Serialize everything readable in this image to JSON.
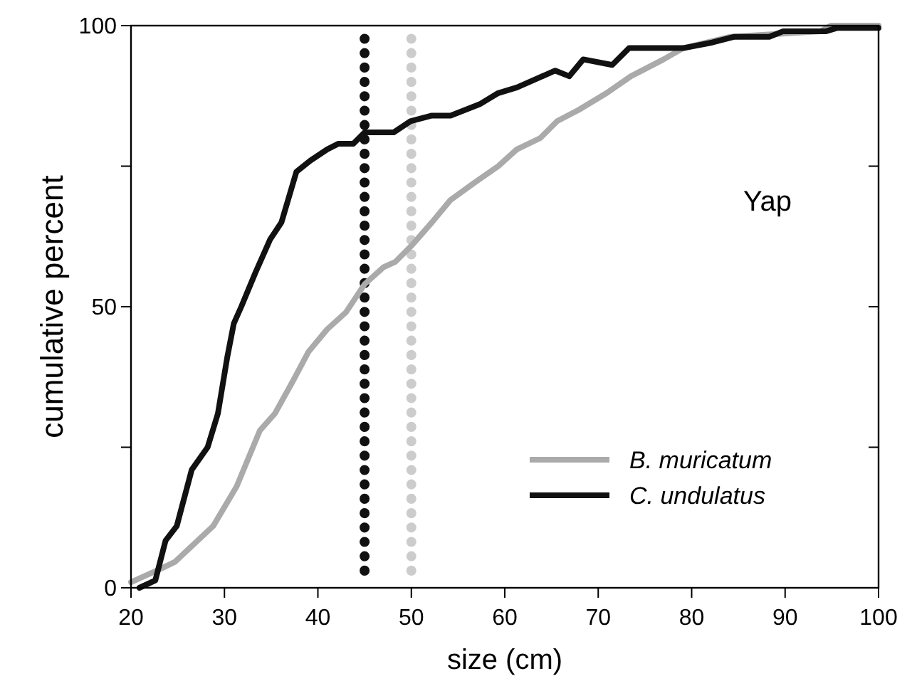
{
  "chart_data": {
    "type": "line",
    "xlabel": "size (cm)",
    "ylabel": "cumulative percent",
    "xlim": [
      20,
      100
    ],
    "ylim": [
      0,
      100
    ],
    "xticks": [
      20,
      30,
      40,
      50,
      60,
      70,
      80,
      90,
      100
    ],
    "yticks": [
      0,
      {
        "value": 25,
        "label": null
      },
      50,
      {
        "value": 75,
        "label": null
      },
      100
    ],
    "grid": false,
    "legend": "bottom right",
    "marker": "none",
    "line_style": "solid",
    "annotations": [
      "Yap"
    ],
    "ref_lines": [
      {
        "axis": "x",
        "value": 45,
        "color": "#111111",
        "line_style": "dotted"
      },
      {
        "axis": "x",
        "value": 50,
        "color": "#cccccc",
        "line_style": "dotted"
      }
    ],
    "series": [
      {
        "name": "B. muricatum",
        "color": "#aaaaaa",
        "x": [
          20,
          23.2,
          24.7,
          28.8,
          31.3,
          33.8,
          35.4,
          37.4,
          39,
          41,
          43,
          45,
          47,
          48.3,
          50.1,
          52.2,
          54.2,
          56.7,
          59.3,
          61.3,
          63.8,
          65.6,
          67.9,
          70.9,
          73.5,
          77,
          79.1,
          84.1,
          93.8,
          94.9,
          100
        ],
        "values": [
          1,
          3.4,
          4.6,
          11,
          18,
          28,
          31,
          37,
          42,
          46,
          49,
          54,
          57,
          58,
          61,
          65,
          69,
          72,
          75,
          78,
          80,
          83,
          85,
          88,
          91,
          94,
          96,
          98,
          99,
          100,
          100
        ]
      },
      {
        "name": "C. undulatus",
        "color": "#111111",
        "x": [
          20.9,
          22.6,
          23.7,
          24.9,
          26.5,
          28.2,
          29.3,
          30.3,
          31,
          31.8,
          33.3,
          34.9,
          36.1,
          37.7,
          39.2,
          41,
          42.2,
          43.8,
          45,
          48.1,
          49.9,
          52.2,
          54.2,
          57.3,
          59.3,
          61.3,
          65.4,
          66.9,
          68.4,
          71.5,
          73.3,
          79.1,
          82.2,
          84.5,
          88.3,
          89.8,
          94.4,
          95.6,
          100
        ],
        "values": [
          0,
          1.3,
          8.4,
          11,
          21,
          25,
          31,
          41,
          47,
          50,
          56,
          62,
          65,
          74,
          76,
          78,
          79,
          79,
          81,
          81,
          83,
          84,
          84,
          86,
          88,
          89,
          92,
          91,
          94,
          93,
          96,
          96,
          97,
          98,
          98,
          99,
          99,
          99.6,
          99.6
        ]
      }
    ]
  }
}
